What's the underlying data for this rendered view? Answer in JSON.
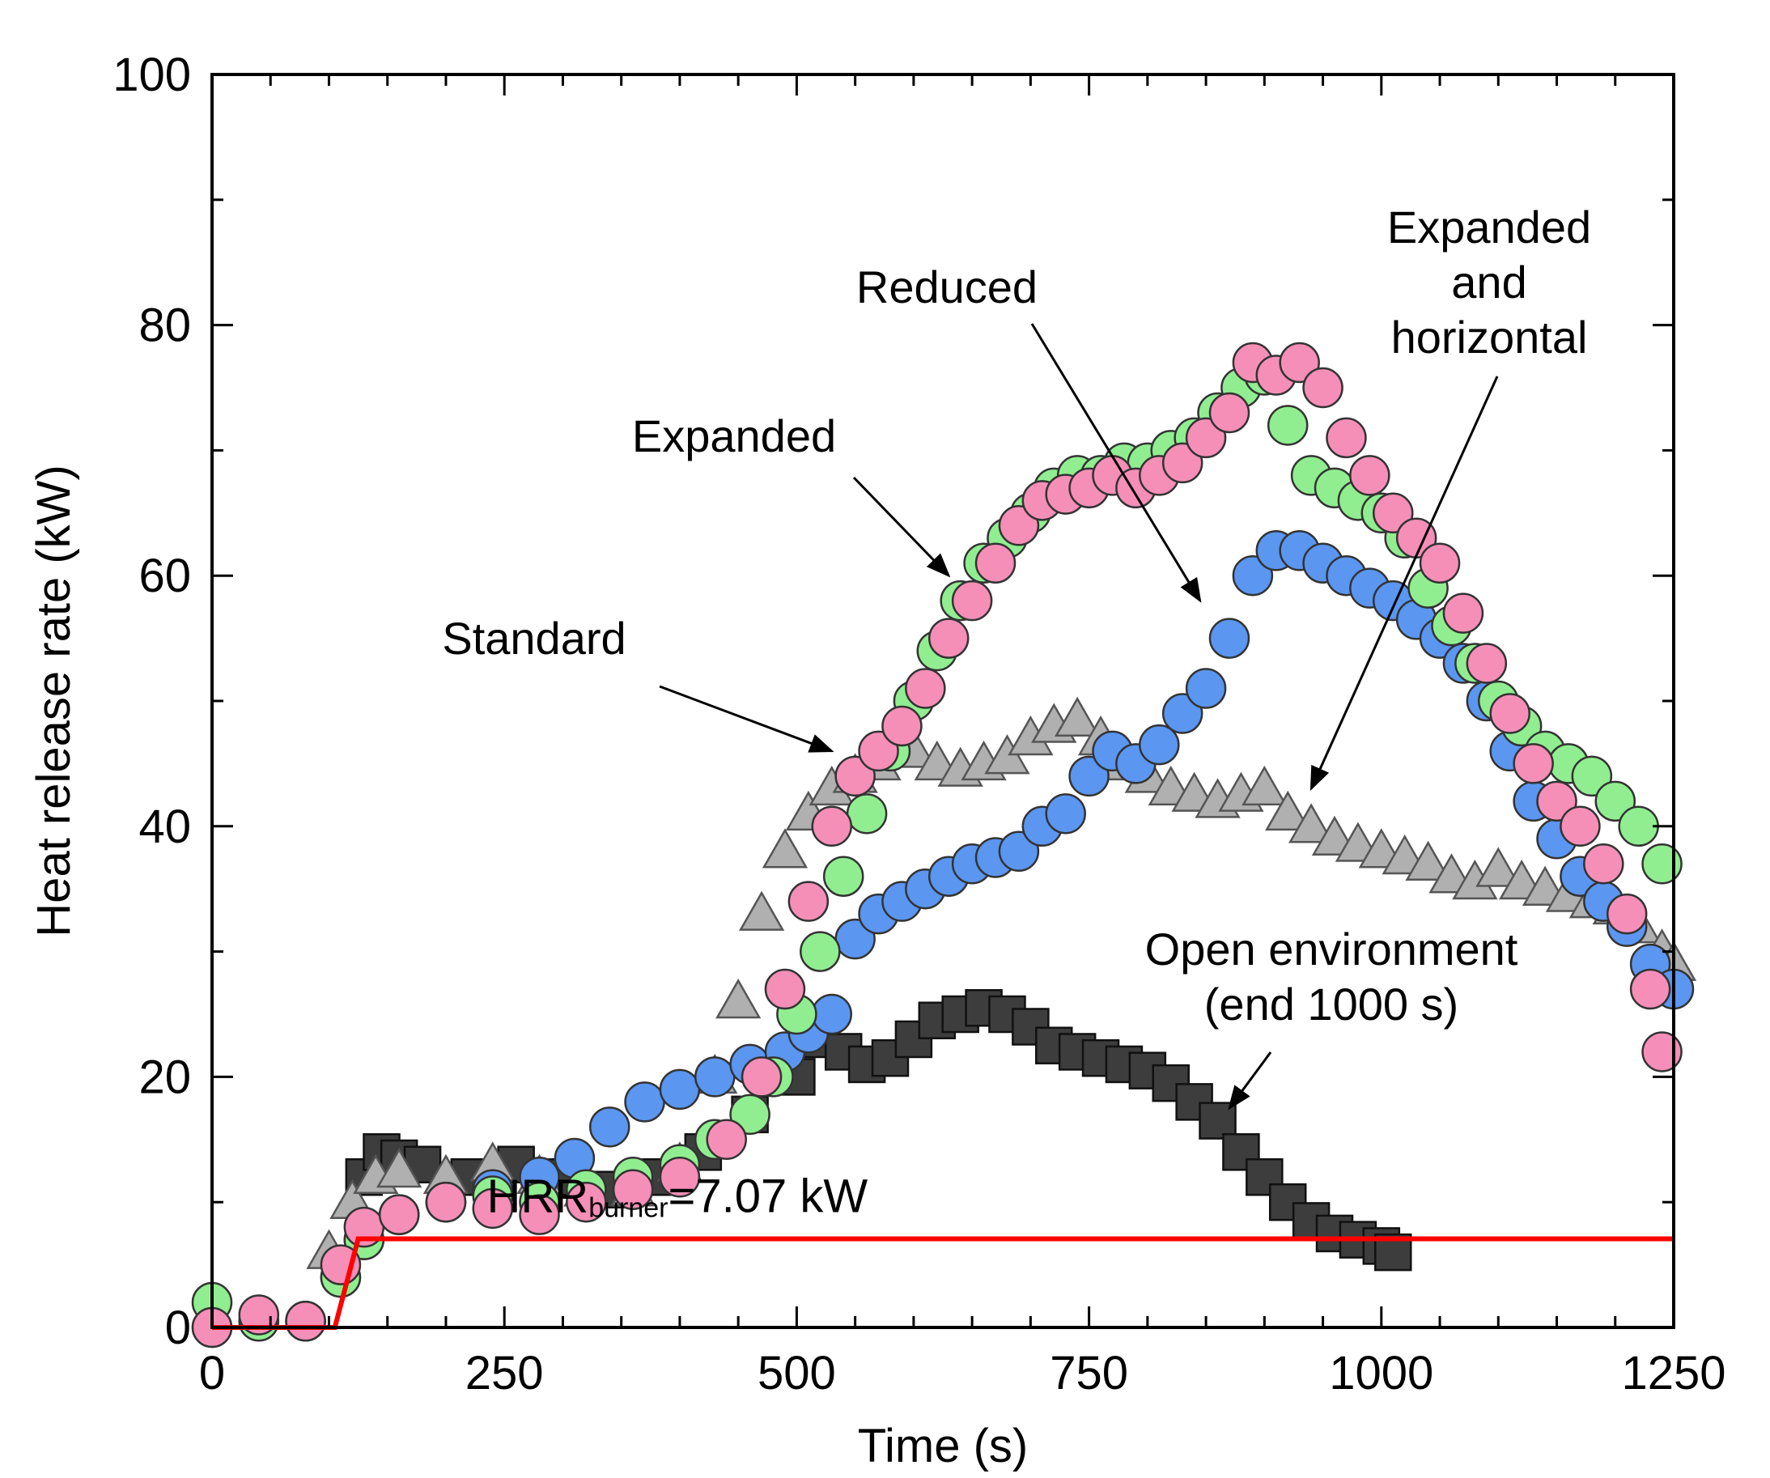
{
  "chart_data": {
    "type": "scatter",
    "title": "",
    "xlabel": "Time (s)",
    "ylabel": "Heat release rate (kW)",
    "xlim": [
      0,
      1250
    ],
    "ylim": [
      0,
      100
    ],
    "xticks": [
      0,
      250,
      500,
      750,
      1000,
      1250
    ],
    "xtick_labels": [
      "0",
      "250",
      "500",
      "750",
      "1000",
      "1250"
    ],
    "yticks": [
      0,
      20,
      40,
      60,
      80,
      100
    ],
    "ytick_labels": [
      "0",
      "20",
      "40",
      "60",
      "80",
      "100"
    ],
    "series": [
      {
        "name": "Open environment (end 1000 s)",
        "marker": "square",
        "color": "#3d3d3d",
        "points": [
          [
            130,
            12
          ],
          [
            145,
            14
          ],
          [
            160,
            13.5
          ],
          [
            180,
            13
          ],
          [
            220,
            12
          ],
          [
            260,
            13
          ],
          [
            300,
            12
          ],
          [
            340,
            11
          ],
          [
            380,
            12
          ],
          [
            420,
            14
          ],
          [
            460,
            17
          ],
          [
            500,
            20
          ],
          [
            520,
            23
          ],
          [
            540,
            22
          ],
          [
            560,
            21
          ],
          [
            580,
            21.5
          ],
          [
            600,
            23
          ],
          [
            620,
            24.5
          ],
          [
            640,
            25
          ],
          [
            660,
            25.5
          ],
          [
            680,
            25
          ],
          [
            700,
            24
          ],
          [
            720,
            22.5
          ],
          [
            740,
            22
          ],
          [
            760,
            21.5
          ],
          [
            780,
            21
          ],
          [
            800,
            20.5
          ],
          [
            820,
            19.5
          ],
          [
            840,
            18
          ],
          [
            860,
            16.5
          ],
          [
            880,
            14
          ],
          [
            900,
            12
          ],
          [
            920,
            10
          ],
          [
            940,
            8.5
          ],
          [
            960,
            7.5
          ],
          [
            980,
            7
          ],
          [
            1000,
            6.5
          ],
          [
            1010,
            6
          ]
        ]
      },
      {
        "name": "Standard",
        "marker": "triangle",
        "color": "#b0b0b0",
        "points": [
          [
            100,
            6
          ],
          [
            120,
            10
          ],
          [
            140,
            12
          ],
          [
            160,
            12.5
          ],
          [
            200,
            12
          ],
          [
            240,
            13
          ],
          [
            280,
            12
          ],
          [
            320,
            11
          ],
          [
            360,
            11
          ],
          [
            400,
            13
          ],
          [
            430,
            20
          ],
          [
            450,
            26
          ],
          [
            470,
            33
          ],
          [
            490,
            38
          ],
          [
            510,
            41
          ],
          [
            530,
            43
          ],
          [
            550,
            44
          ],
          [
            570,
            45
          ],
          [
            600,
            46
          ],
          [
            620,
            45
          ],
          [
            640,
            44.5
          ],
          [
            660,
            45
          ],
          [
            680,
            45.5
          ],
          [
            700,
            47
          ],
          [
            720,
            48
          ],
          [
            740,
            48.5
          ],
          [
            760,
            47
          ],
          [
            780,
            45
          ],
          [
            800,
            44
          ],
          [
            820,
            43
          ],
          [
            840,
            42.5
          ],
          [
            860,
            42
          ],
          [
            880,
            42.5
          ],
          [
            900,
            43
          ],
          [
            920,
            41
          ],
          [
            940,
            40
          ],
          [
            960,
            39
          ],
          [
            980,
            38.5
          ],
          [
            1000,
            38
          ],
          [
            1020,
            37.5
          ],
          [
            1040,
            37
          ],
          [
            1060,
            36
          ],
          [
            1080,
            35.5
          ],
          [
            1100,
            36.5
          ],
          [
            1120,
            35.5
          ],
          [
            1140,
            35
          ],
          [
            1160,
            34.5
          ],
          [
            1180,
            34
          ],
          [
            1200,
            33.5
          ],
          [
            1220,
            32
          ],
          [
            1240,
            30
          ],
          [
            1250,
            29
          ]
        ]
      },
      {
        "name": "Reduced",
        "marker": "circle",
        "color": "#5b96f0",
        "points": [
          [
            0,
            0
          ],
          [
            40,
            0.5
          ],
          [
            80,
            0.5
          ],
          [
            110,
            4
          ],
          [
            130,
            7
          ],
          [
            160,
            9
          ],
          [
            200,
            10
          ],
          [
            240,
            11
          ],
          [
            280,
            12
          ],
          [
            310,
            13.5
          ],
          [
            340,
            16
          ],
          [
            370,
            18
          ],
          [
            400,
            19
          ],
          [
            430,
            20
          ],
          [
            460,
            21
          ],
          [
            490,
            22
          ],
          [
            510,
            23.5
          ],
          [
            530,
            25
          ],
          [
            550,
            31
          ],
          [
            570,
            33
          ],
          [
            590,
            34
          ],
          [
            610,
            35
          ],
          [
            630,
            36
          ],
          [
            650,
            37
          ],
          [
            670,
            37.5
          ],
          [
            690,
            38
          ],
          [
            710,
            40
          ],
          [
            730,
            41
          ],
          [
            750,
            44
          ],
          [
            770,
            46
          ],
          [
            790,
            45
          ],
          [
            810,
            46.5
          ],
          [
            830,
            49
          ],
          [
            850,
            51
          ],
          [
            870,
            55
          ],
          [
            890,
            60
          ],
          [
            910,
            62
          ],
          [
            930,
            62
          ],
          [
            950,
            61
          ],
          [
            970,
            60
          ],
          [
            990,
            59
          ],
          [
            1010,
            58
          ],
          [
            1030,
            56.5
          ],
          [
            1050,
            55
          ],
          [
            1070,
            53
          ],
          [
            1090,
            50
          ],
          [
            1110,
            46
          ],
          [
            1130,
            42
          ],
          [
            1150,
            39
          ],
          [
            1170,
            36
          ],
          [
            1190,
            34
          ],
          [
            1210,
            32
          ],
          [
            1230,
            29
          ],
          [
            1250,
            27
          ]
        ]
      },
      {
        "name": "Expanded",
        "marker": "circle",
        "color": "#90ee90",
        "points": [
          [
            0,
            2
          ],
          [
            40,
            0.5
          ],
          [
            80,
            0.5
          ],
          [
            110,
            4
          ],
          [
            130,
            7
          ],
          [
            160,
            9
          ],
          [
            200,
            10
          ],
          [
            240,
            10.5
          ],
          [
            280,
            10
          ],
          [
            320,
            11
          ],
          [
            360,
            12
          ],
          [
            400,
            13
          ],
          [
            430,
            15
          ],
          [
            460,
            17
          ],
          [
            480,
            20
          ],
          [
            500,
            25
          ],
          [
            520,
            30
          ],
          [
            540,
            36
          ],
          [
            560,
            41
          ],
          [
            580,
            46
          ],
          [
            600,
            50
          ],
          [
            620,
            54
          ],
          [
            640,
            58
          ],
          [
            660,
            61
          ],
          [
            680,
            63
          ],
          [
            700,
            65
          ],
          [
            720,
            67
          ],
          [
            740,
            68
          ],
          [
            760,
            68
          ],
          [
            780,
            69
          ],
          [
            800,
            69
          ],
          [
            820,
            70
          ],
          [
            840,
            71
          ],
          [
            860,
            73
          ],
          [
            880,
            75
          ],
          [
            900,
            76
          ],
          [
            920,
            72
          ],
          [
            940,
            68
          ],
          [
            960,
            67
          ],
          [
            980,
            66
          ],
          [
            1000,
            65
          ],
          [
            1020,
            63
          ],
          [
            1040,
            59
          ],
          [
            1060,
            56
          ],
          [
            1080,
            53
          ],
          [
            1100,
            50
          ],
          [
            1120,
            48
          ],
          [
            1140,
            46
          ],
          [
            1160,
            45
          ],
          [
            1180,
            44
          ],
          [
            1200,
            42
          ],
          [
            1220,
            40
          ],
          [
            1240,
            37
          ]
        ]
      },
      {
        "name": "Expanded and horizontal",
        "marker": "circle",
        "color": "#f58fb8",
        "points": [
          [
            0,
            0
          ],
          [
            40,
            1
          ],
          [
            80,
            0.5
          ],
          [
            110,
            5
          ],
          [
            130,
            8
          ],
          [
            160,
            9
          ],
          [
            200,
            10
          ],
          [
            240,
            9.5
          ],
          [
            280,
            9
          ],
          [
            320,
            10
          ],
          [
            360,
            11
          ],
          [
            400,
            12
          ],
          [
            440,
            15
          ],
          [
            470,
            20
          ],
          [
            490,
            27
          ],
          [
            510,
            34
          ],
          [
            530,
            40
          ],
          [
            550,
            44
          ],
          [
            570,
            46
          ],
          [
            590,
            48
          ],
          [
            610,
            51
          ],
          [
            630,
            55
          ],
          [
            650,
            58
          ],
          [
            670,
            61
          ],
          [
            690,
            64
          ],
          [
            710,
            66
          ],
          [
            730,
            66.5
          ],
          [
            750,
            67
          ],
          [
            770,
            68
          ],
          [
            790,
            67
          ],
          [
            810,
            68
          ],
          [
            830,
            69
          ],
          [
            850,
            71
          ],
          [
            870,
            73
          ],
          [
            890,
            77
          ],
          [
            910,
            76
          ],
          [
            930,
            77
          ],
          [
            950,
            75
          ],
          [
            970,
            71
          ],
          [
            990,
            68
          ],
          [
            1010,
            65
          ],
          [
            1030,
            63
          ],
          [
            1050,
            61
          ],
          [
            1070,
            57
          ],
          [
            1090,
            53
          ],
          [
            1110,
            49
          ],
          [
            1130,
            45
          ],
          [
            1150,
            42
          ],
          [
            1170,
            40
          ],
          [
            1190,
            37
          ],
          [
            1210,
            33
          ],
          [
            1230,
            27
          ],
          [
            1240,
            22
          ]
        ]
      }
    ],
    "reference_line": {
      "name": "HRR burner",
      "label_main": "HRR",
      "label_sub": "burner",
      "label_value": "=7.07 kW",
      "color": "#ff0000",
      "points": [
        [
          0,
          0
        ],
        [
          105,
          0
        ],
        [
          125,
          7.07
        ],
        [
          1250,
          7.07
        ]
      ]
    },
    "annotations": [
      {
        "lines": [
          "Standard"
        ],
        "target": [
          530,
          46
        ]
      },
      {
        "lines": [
          "Expanded"
        ],
        "target": [
          630,
          60
        ]
      },
      {
        "lines": [
          "Reduced"
        ],
        "target": [
          845,
          58
        ]
      },
      {
        "lines": [
          "Expanded",
          "and",
          "horizontal"
        ],
        "target": [
          940,
          43
        ]
      },
      {
        "lines": [
          "Open environment",
          "(end 1000 s)"
        ],
        "target": [
          870,
          17.5
        ]
      }
    ]
  }
}
